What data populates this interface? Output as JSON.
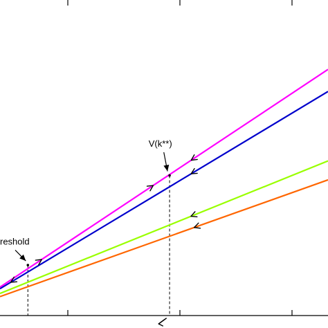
{
  "chart_data": {
    "type": "line",
    "title": "",
    "xlabel": "",
    "ylabel": "",
    "grid": false,
    "xlim": [
      0,
      1
    ],
    "ylim": [
      0,
      1
    ],
    "series": [
      {
        "color": "#ff00ff",
        "points": [
          [
            0.0,
            0.09
          ],
          [
            1.0,
            0.78
          ]
        ]
      },
      {
        "color": "#0000cc",
        "points": [
          [
            0.0,
            0.085
          ],
          [
            1.0,
            0.71
          ]
        ]
      },
      {
        "color": "#99ff00",
        "points": [
          [
            0.0,
            0.07
          ],
          [
            1.0,
            0.49
          ]
        ]
      },
      {
        "color": "#ff6600",
        "points": [
          [
            0.0,
            0.06
          ],
          [
            1.0,
            0.43
          ]
        ]
      }
    ],
    "guides": [
      {
        "x": 0.085,
        "y_top": 0.16
      },
      {
        "x": 0.517,
        "y_top": 0.444
      }
    ],
    "annotations": [
      {
        "text": "reshold",
        "x": 0.085,
        "y": 0.16,
        "label_x": 0.0,
        "label_y": 0.225
      },
      {
        "text": "V(k**)",
        "x": 0.517,
        "y": 0.444,
        "label_x": 0.453,
        "label_y": 0.535
      }
    ],
    "direction_arrows": [
      {
        "series": 0,
        "x": 0.12,
        "dir": "right"
      },
      {
        "series": 0,
        "x": 0.46,
        "dir": "right"
      },
      {
        "series": 0,
        "x": 0.59,
        "dir": "left"
      },
      {
        "series": 1,
        "x": 0.04,
        "dir": "left"
      },
      {
        "series": 1,
        "x": 0.59,
        "dir": "left"
      },
      {
        "series": 2,
        "x": 0.59,
        "dir": "left"
      },
      {
        "series": 3,
        "x": 0.6,
        "dir": "left"
      }
    ],
    "axis_arrow": {
      "x": 0.49,
      "dir": "left"
    }
  }
}
